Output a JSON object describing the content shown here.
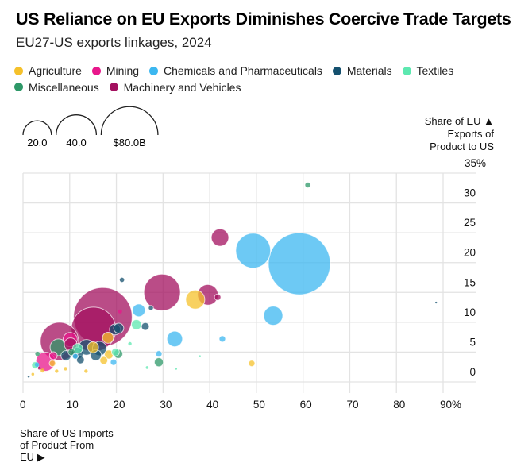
{
  "header": {
    "title": "US Reliance on EU Exports Diminishes Coercive Trade Targets",
    "subtitle": "EU27-US exports linkages, 2024"
  },
  "legend": [
    {
      "label": "Agriculture",
      "color": "#f5c12b"
    },
    {
      "label": "Mining",
      "color": "#e8178b"
    },
    {
      "label": "Chemicals and Pharmaceuticals",
      "color": "#3cb7f0"
    },
    {
      "label": "Materials",
      "color": "#14506e"
    },
    {
      "label": "Textiles",
      "color": "#5de8b0"
    },
    {
      "label": "Miscellaneous",
      "color": "#2e9868"
    },
    {
      "label": "Machinery and Vehicles",
      "color": "#a3105f"
    }
  ],
  "size_legend": {
    "values": [
      20,
      40,
      80
    ],
    "labels": [
      "20.0",
      "40.0",
      "$80.0B"
    ]
  },
  "chart_data": {
    "type": "scatter",
    "title": "US Reliance on EU Exports Diminishes Coercive Trade Targets",
    "subtitle": "EU27-US exports linkages, 2024",
    "xlabel": "Share of US Imports of Product From EU ▶",
    "ylabel": "Share of EU ▲ Exports of Product to US",
    "xlim": [
      0,
      90
    ],
    "ylim": [
      0,
      35
    ],
    "x_ticks": [
      "0",
      "10",
      "20",
      "30",
      "40",
      "50",
      "60",
      "70",
      "80",
      "90%"
    ],
    "y_ticks": [
      "0",
      "5",
      "10",
      "15",
      "20",
      "25",
      "30",
      "35%"
    ],
    "grid": true,
    "size_unit": "US$ billions (export value)",
    "series": [
      {
        "name": "Machinery and Vehicles",
        "color": "#a3105f",
        "points": [
          {
            "x": 17.1,
            "y": 10.9,
            "v": 85
          },
          {
            "x": 15.1,
            "y": 8.8,
            "v": 49
          },
          {
            "x": 7.8,
            "y": 6.8,
            "v": 36
          },
          {
            "x": 29.8,
            "y": 15.0,
            "v": 33
          },
          {
            "x": 39.6,
            "y": 14.6,
            "v": 10.5
          },
          {
            "x": 42.2,
            "y": 24.2,
            "v": 7.5
          },
          {
            "x": 41.7,
            "y": 14.2,
            "v": 1.0
          },
          {
            "x": 10.2,
            "y": 6.3,
            "v": 4
          },
          {
            "x": 3.5,
            "y": 2.3,
            "v": 0.2
          }
        ]
      },
      {
        "name": "Chemicals and Pharmaceuticals",
        "color": "#3cb7f0",
        "points": [
          {
            "x": 59.2,
            "y": 19.8,
            "v": 95
          },
          {
            "x": 49.3,
            "y": 22.0,
            "v": 30
          },
          {
            "x": 53.6,
            "y": 11.1,
            "v": 9
          },
          {
            "x": 32.5,
            "y": 7.2,
            "v": 6
          },
          {
            "x": 24.8,
            "y": 12.0,
            "v": 4
          },
          {
            "x": 42.7,
            "y": 7.2,
            "v": 1
          },
          {
            "x": 29.1,
            "y": 4.7,
            "v": 1
          },
          {
            "x": 19.4,
            "y": 3.3,
            "v": 1
          },
          {
            "x": 11.2,
            "y": 4.3,
            "v": 0.8
          },
          {
            "x": 3.0,
            "y": 2.9,
            "v": 0.5
          }
        ]
      },
      {
        "name": "Mining",
        "color": "#e8178b",
        "points": [
          {
            "x": 4.8,
            "y": 3.4,
            "v": 9
          },
          {
            "x": 10.1,
            "y": 7.1,
            "v": 5
          },
          {
            "x": 20.8,
            "y": 11.8,
            "v": 0.4
          },
          {
            "x": 6.5,
            "y": 4.4,
            "v": 1.5
          }
        ]
      },
      {
        "name": "Materials",
        "color": "#14506e",
        "points": [
          {
            "x": 13.6,
            "y": 5.8,
            "v": 6
          },
          {
            "x": 16.4,
            "y": 5.6,
            "v": 5
          },
          {
            "x": 19.7,
            "y": 8.8,
            "v": 3
          },
          {
            "x": 20.5,
            "y": 9.0,
            "v": 2.5
          },
          {
            "x": 11.6,
            "y": 4.8,
            "v": 3.5
          },
          {
            "x": 9.2,
            "y": 4.4,
            "v": 2.5
          },
          {
            "x": 15.6,
            "y": 4.5,
            "v": 3
          },
          {
            "x": 26.2,
            "y": 9.3,
            "v": 1.5
          },
          {
            "x": 21.2,
            "y": 17.1,
            "v": 0.5
          },
          {
            "x": 27.4,
            "y": 12.4,
            "v": 0.6
          },
          {
            "x": 88.5,
            "y": 13.3,
            "v": 0.05
          },
          {
            "x": 12.3,
            "y": 3.7,
            "v": 1.5
          },
          {
            "x": 1.2,
            "y": 0.9,
            "v": 0.1
          }
        ]
      },
      {
        "name": "Agriculture",
        "color": "#f5c12b",
        "points": [
          {
            "x": 36.9,
            "y": 13.8,
            "v": 9
          },
          {
            "x": 18.2,
            "y": 7.4,
            "v": 3
          },
          {
            "x": 15.0,
            "y": 5.8,
            "v": 3
          },
          {
            "x": 18.4,
            "y": 4.6,
            "v": 2
          },
          {
            "x": 17.3,
            "y": 3.6,
            "v": 1.5
          },
          {
            "x": 49.0,
            "y": 3.1,
            "v": 1
          },
          {
            "x": 6.3,
            "y": 3.1,
            "v": 1
          },
          {
            "x": 4.2,
            "y": 1.9,
            "v": 0.4
          },
          {
            "x": 7.2,
            "y": 1.8,
            "v": 0.3
          },
          {
            "x": 13.5,
            "y": 1.8,
            "v": 0.3
          },
          {
            "x": 2.1,
            "y": 1.3,
            "v": 0.2
          },
          {
            "x": 9.1,
            "y": 2.2,
            "v": 0.3
          }
        ]
      },
      {
        "name": "Textiles",
        "color": "#5de8b0",
        "points": [
          {
            "x": 24.3,
            "y": 9.6,
            "v": 2.5
          },
          {
            "x": 2.6,
            "y": 2.8,
            "v": 1.2
          },
          {
            "x": 19.8,
            "y": 5.0,
            "v": 1.5
          },
          {
            "x": 11.7,
            "y": 5.6,
            "v": 2.5
          },
          {
            "x": 22.9,
            "y": 6.4,
            "v": 0.3
          },
          {
            "x": 32.8,
            "y": 2.2,
            "v": 0.1
          },
          {
            "x": 26.6,
            "y": 2.4,
            "v": 0.2
          },
          {
            "x": 37.9,
            "y": 4.3,
            "v": 0.1
          }
        ]
      },
      {
        "name": "Miscellaneous",
        "color": "#2e9868",
        "points": [
          {
            "x": 7.6,
            "y": 5.8,
            "v": 7
          },
          {
            "x": 29.1,
            "y": 3.3,
            "v": 2
          },
          {
            "x": 61.0,
            "y": 33.0,
            "v": 0.8
          },
          {
            "x": 20.4,
            "y": 4.7,
            "v": 2
          },
          {
            "x": 3.1,
            "y": 4.7,
            "v": 0.5
          },
          {
            "x": 10.4,
            "y": 5.0,
            "v": 1.2
          }
        ]
      }
    ]
  }
}
